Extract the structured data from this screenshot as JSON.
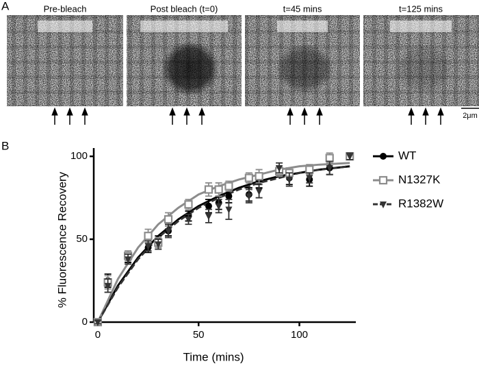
{
  "panel_a": {
    "label": "A",
    "titles": [
      "Pre-bleach",
      "Post bleach (t=0)",
      "t=45 mins",
      "t=125 mins"
    ],
    "scale_bar": "2μm"
  },
  "chart_data": {
    "type": "scatter",
    "panel_label": "B",
    "x_label": "Time (mins)",
    "y_label": "% Fluorescence Recovery",
    "xlim": [
      -2,
      128
    ],
    "xticks": [
      0,
      50,
      100
    ],
    "ylim": [
      0,
      105
    ],
    "yticks": [
      0,
      50,
      100
    ],
    "x": [
      0,
      5,
      15,
      25,
      30,
      35,
      45,
      55,
      60,
      65,
      75,
      80,
      90,
      95,
      105,
      115,
      125
    ],
    "fit_x": [
      0,
      10,
      20,
      30,
      40,
      50,
      60,
      70,
      80,
      90,
      100,
      110,
      125
    ],
    "series": [
      {
        "name": "WT",
        "color": "#000000",
        "marker": "circle",
        "dash": false,
        "values": [
          0,
          25,
          39,
          45,
          49,
          55,
          64,
          70,
          72,
          76,
          77,
          85,
          91,
          87,
          86,
          93,
          100
        ],
        "errors": [
          1,
          4,
          3,
          3,
          3,
          3,
          3,
          4,
          4,
          4,
          4,
          4,
          3,
          4,
          4,
          4,
          2
        ],
        "fit_values": [
          0,
          22,
          39,
          52,
          62,
          70,
          76,
          81,
          85,
          88,
          90,
          92,
          94
        ]
      },
      {
        "name": "N1327K",
        "color": "#8c8c8c",
        "marker": "square-open",
        "dash": false,
        "values": [
          0,
          24,
          40,
          52,
          48,
          62,
          71,
          80,
          80,
          82,
          87,
          88,
          91,
          90,
          92,
          99,
          100
        ],
        "errors": [
          1,
          4,
          3,
          4,
          3,
          4,
          3,
          4,
          4,
          3,
          3,
          4,
          3,
          3,
          3,
          3,
          2
        ],
        "fit_values": [
          0,
          26,
          45,
          59,
          69,
          77,
          82,
          86,
          89,
          92,
          94,
          95,
          96
        ]
      },
      {
        "name": "R1382W",
        "color": "#333333",
        "marker": "triangle-down",
        "dash": true,
        "values": [
          0,
          22,
          38,
          46,
          47,
          55,
          62,
          64,
          70,
          68,
          76,
          79,
          93,
          86,
          87,
          93,
          100
        ],
        "errors": [
          1,
          4,
          3,
          3,
          3,
          4,
          3,
          4,
          4,
          6,
          4,
          4,
          3,
          4,
          3,
          4,
          2
        ],
        "fit_values": [
          0,
          21,
          38,
          51,
          61,
          69,
          75,
          80,
          84,
          87,
          90,
          92,
          94
        ]
      }
    ]
  }
}
